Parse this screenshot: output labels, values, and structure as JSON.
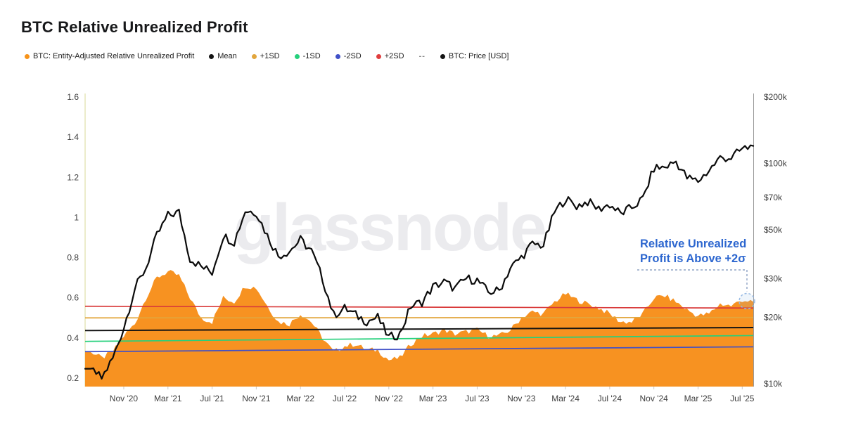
{
  "header": {
    "title": "BTC Relative Unrealized Profit"
  },
  "legend": {
    "items": [
      {
        "label": "BTC: Entity-Adjusted Relative Unrealized Profit",
        "color": "#f7931a",
        "marker": "dot"
      },
      {
        "label": "Mean",
        "color": "#141414",
        "marker": "dot"
      },
      {
        "label": "+1SD",
        "color": "#e2a63d",
        "marker": "dot"
      },
      {
        "label": "-1SD",
        "color": "#26d07c",
        "marker": "dot"
      },
      {
        "label": "-2SD",
        "color": "#4050c8",
        "marker": "dot"
      },
      {
        "label": "+2SD",
        "color": "#e03e3e",
        "marker": "dot"
      },
      {
        "label": "--",
        "color": "#8a8a8a",
        "marker": "dash"
      },
      {
        "label": "BTC: Price [USD]",
        "color": "#141414",
        "marker": "dot"
      }
    ]
  },
  "watermark": "glassnode",
  "annotation": {
    "line1": "Relative Unrealized",
    "line2": "Profit is Above +2σ",
    "color": "#2c66cf",
    "connector_color": "#8fa3c4",
    "circle_color": "#96b9e4"
  },
  "chart_data": {
    "type": "area+line",
    "title": "BTC Relative Unrealized Profit",
    "grid": false,
    "left_axis": {
      "label": "Relative Unrealized Profit",
      "scale": "linear",
      "range": [
        0.2,
        1.6
      ],
      "ticks": [
        "1.6",
        "1.4",
        "1.2",
        "1",
        "0.8",
        "0.6",
        "0.4",
        "0.2"
      ],
      "tick_values": [
        1.6,
        1.4,
        1.2,
        1,
        0.8,
        0.6,
        0.4,
        0.2
      ]
    },
    "right_axis": {
      "label": "BTC: Price [USD]",
      "scale": "log",
      "range": [
        10000,
        200000
      ],
      "ticks": [
        {
          "label": "$200k",
          "value": 200000
        },
        {
          "label": "$100k",
          "value": 100000
        },
        {
          "label": "$70k",
          "value": 70000
        },
        {
          "label": "$50k",
          "value": 50000
        },
        {
          "label": "$30k",
          "value": 30000
        },
        {
          "label": "$20k",
          "value": 20000
        },
        {
          "label": "$10k",
          "value": 10000
        }
      ]
    },
    "x_axis": {
      "ticks": [
        {
          "label": "Nov '20",
          "month": "2020-11"
        },
        {
          "label": "Mar '21",
          "month": "2021-03"
        },
        {
          "label": "Jul '21",
          "month": "2021-07"
        },
        {
          "label": "Nov '21",
          "month": "2021-11"
        },
        {
          "label": "Mar '22",
          "month": "2022-03"
        },
        {
          "label": "Jul '22",
          "month": "2022-07"
        },
        {
          "label": "Nov '22",
          "month": "2022-11"
        },
        {
          "label": "Mar '23",
          "month": "2023-03"
        },
        {
          "label": "Jul '23",
          "month": "2023-07"
        },
        {
          "label": "Nov '23",
          "month": "2023-11"
        },
        {
          "label": "Mar '24",
          "month": "2024-03"
        },
        {
          "label": "Jul '24",
          "month": "2024-07"
        },
        {
          "label": "Nov '24",
          "month": "2024-11"
        },
        {
          "label": "Mar '25",
          "month": "2025-03"
        },
        {
          "label": "Jul '25",
          "month": "2025-07"
        }
      ]
    },
    "bands": [
      {
        "name": "+2SD",
        "color": "#d93a3a",
        "start": 0.558,
        "end": 0.549
      },
      {
        "name": "+1SD",
        "color": "#e2a63d",
        "start": 0.5,
        "end": 0.502
      },
      {
        "name": "Mean",
        "color": "#141414",
        "start": 0.437,
        "end": 0.452
      },
      {
        "name": "-1SD",
        "color": "#26d07c",
        "start": 0.383,
        "end": 0.412
      },
      {
        "name": "-2SD",
        "color": "#4050c8",
        "start": 0.332,
        "end": 0.356
      }
    ],
    "months": [
      "2020-08",
      "2020-09",
      "2020-10",
      "2020-11",
      "2020-12",
      "2021-01",
      "2021-02",
      "2021-03",
      "2021-04",
      "2021-05",
      "2021-06",
      "2021-07",
      "2021-08",
      "2021-09",
      "2021-10",
      "2021-11",
      "2021-12",
      "2022-01",
      "2022-02",
      "2022-03",
      "2022-04",
      "2022-05",
      "2022-06",
      "2022-07",
      "2022-08",
      "2022-09",
      "2022-10",
      "2022-11",
      "2022-12",
      "2023-01",
      "2023-02",
      "2023-03",
      "2023-04",
      "2023-05",
      "2023-06",
      "2023-07",
      "2023-08",
      "2023-09",
      "2023-10",
      "2023-11",
      "2023-12",
      "2024-01",
      "2024-02",
      "2024-03",
      "2024-04",
      "2024-05",
      "2024-06",
      "2024-07",
      "2024-08",
      "2024-09",
      "2024-10",
      "2024-11",
      "2024-12",
      "2025-01",
      "2025-02",
      "2025-03",
      "2025-04",
      "2025-05",
      "2025-06",
      "2025-07",
      "2025-08"
    ],
    "series": [
      {
        "name": "BTC: Entity-Adjusted Relative Unrealized Profit",
        "type": "area",
        "axis": "left",
        "color": "#f79221",
        "values": [
          0.33,
          0.3,
          0.33,
          0.41,
          0.47,
          0.6,
          0.7,
          0.73,
          0.71,
          0.6,
          0.5,
          0.48,
          0.6,
          0.58,
          0.66,
          0.65,
          0.56,
          0.48,
          0.47,
          0.52,
          0.48,
          0.4,
          0.33,
          0.36,
          0.37,
          0.34,
          0.34,
          0.29,
          0.3,
          0.37,
          0.41,
          0.42,
          0.44,
          0.42,
          0.43,
          0.44,
          0.41,
          0.41,
          0.44,
          0.5,
          0.53,
          0.52,
          0.58,
          0.62,
          0.59,
          0.57,
          0.55,
          0.52,
          0.48,
          0.48,
          0.52,
          0.6,
          0.61,
          0.58,
          0.54,
          0.51,
          0.52,
          0.57,
          0.56,
          0.59,
          0.58
        ]
      },
      {
        "name": "BTC: Price [USD]",
        "type": "line",
        "axis": "right",
        "color": "#0b0b0b",
        "values": [
          11700,
          10600,
          13000,
          18000,
          27000,
          33500,
          47000,
          58000,
          60000,
          37000,
          34000,
          32000,
          47000,
          44000,
          61000,
          60000,
          47000,
          38000,
          40000,
          45000,
          40000,
          30000,
          20500,
          22000,
          20500,
          19200,
          20000,
          16200,
          16800,
          22500,
          23500,
          27500,
          29000,
          27000,
          30000,
          29500,
          26000,
          26500,
          33500,
          37500,
          43000,
          42500,
          60000,
          69000,
          64000,
          67000,
          62000,
          65000,
          59000,
          63000,
          69000,
          95000,
          96000,
          102000,
          86000,
          83000,
          93000,
          106000,
          106000,
          116000,
          120000
        ]
      }
    ]
  }
}
